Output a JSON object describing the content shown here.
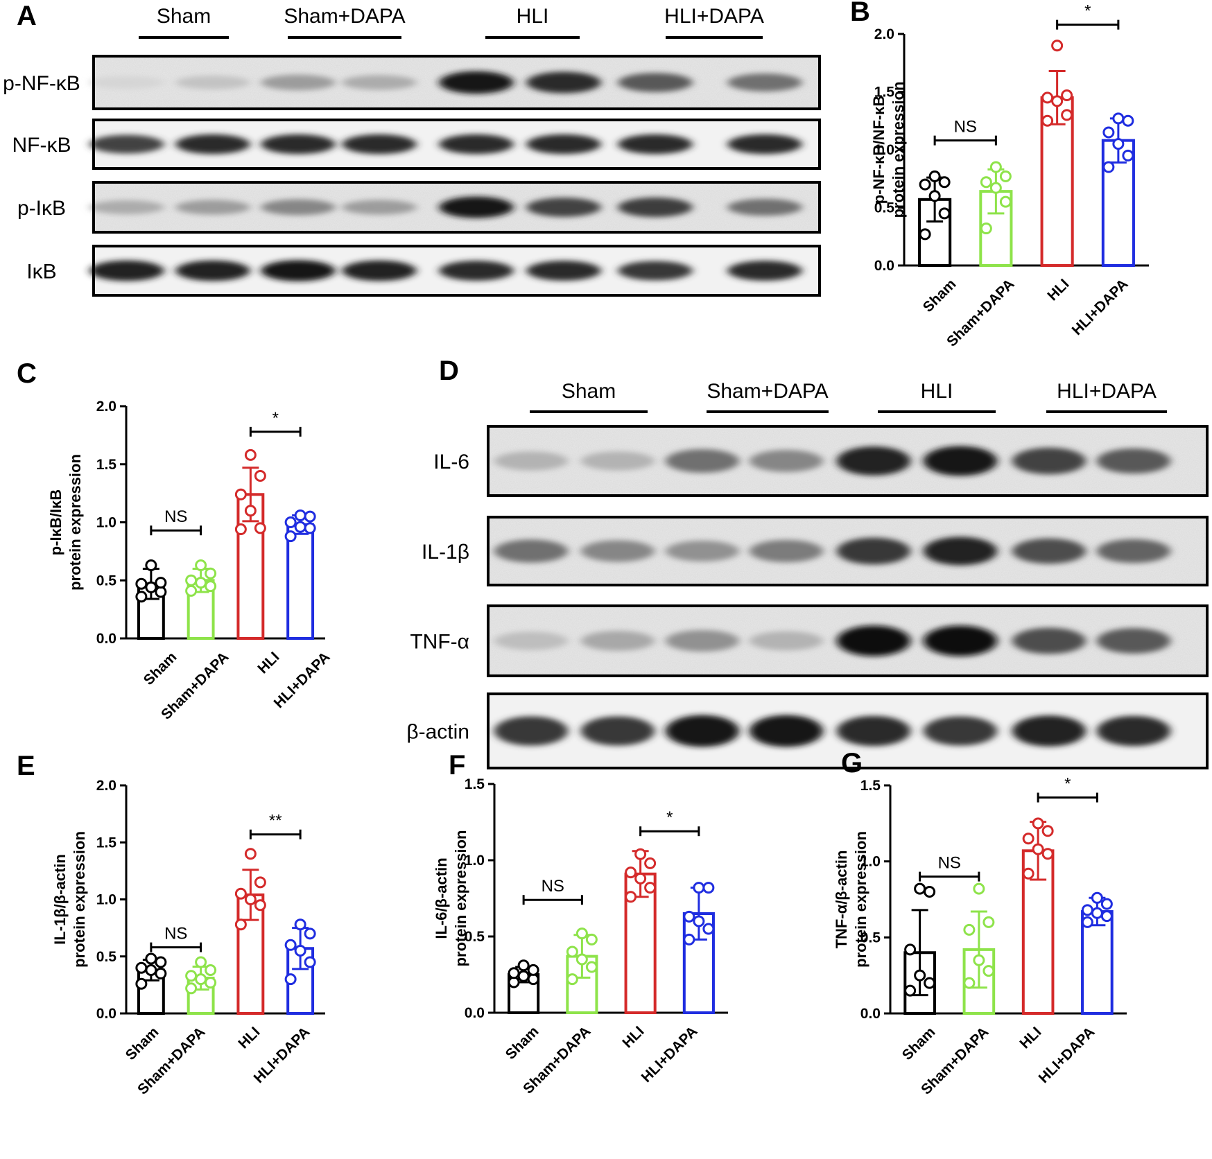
{
  "colors": {
    "sham": "#000000",
    "sham_dapa": "#8ee34a",
    "hli": "#d42a2a",
    "hli_dapa": "#1f2de0"
  },
  "blots": [
    {
      "panel": "A",
      "groups": [
        "Sham",
        "Sham+DAPA",
        "HLI",
        "HLI+DAPA"
      ],
      "rows": [
        {
          "label": "p-NF-κB",
          "intensities": [
            0.1,
            0.18,
            0.35,
            0.28,
            0.95,
            0.85,
            0.65,
            0.55
          ],
          "noise": true
        },
        {
          "label": "NF-κB",
          "intensities": [
            0.75,
            0.85,
            0.85,
            0.85,
            0.85,
            0.85,
            0.85,
            0.85
          ],
          "noise": false
        },
        {
          "label": "p-IκB",
          "intensities": [
            0.28,
            0.35,
            0.45,
            0.35,
            0.95,
            0.75,
            0.78,
            0.55
          ],
          "noise": true
        },
        {
          "label": "IκB",
          "intensities": [
            0.9,
            0.9,
            0.95,
            0.9,
            0.85,
            0.85,
            0.8,
            0.85
          ],
          "noise": false
        }
      ]
    },
    {
      "panel": "D",
      "groups": [
        "Sham",
        "Sham+DAPA",
        "HLI",
        "HLI+DAPA"
      ],
      "rows": [
        {
          "label": "IL-6",
          "intensities": [
            0.25,
            0.25,
            0.55,
            0.45,
            0.9,
            0.95,
            0.75,
            0.65
          ],
          "noise": true
        },
        {
          "label": "IL-1β",
          "intensities": [
            0.55,
            0.45,
            0.4,
            0.5,
            0.8,
            0.9,
            0.7,
            0.6
          ],
          "noise": true
        },
        {
          "label": "TNF-α",
          "intensities": [
            0.2,
            0.3,
            0.4,
            0.25,
            0.98,
            0.98,
            0.7,
            0.65
          ],
          "noise": true
        },
        {
          "label": "β-actin",
          "intensities": [
            0.8,
            0.8,
            0.95,
            0.95,
            0.85,
            0.8,
            0.9,
            0.85
          ],
          "noise": false
        }
      ]
    }
  ],
  "chart_data": [
    {
      "panel": "B",
      "type": "bar",
      "categories": [
        "Sham",
        "Sham+DAPA",
        "HLI",
        "HLI+DAPA"
      ],
      "ylabel": [
        "p-NF-κB/NF-κB",
        "protein expression"
      ],
      "ylim": [
        0,
        2.0
      ],
      "yticks": [
        "0.0",
        "0.5",
        "1.0",
        "1.5",
        "2.0"
      ],
      "values": [
        0.57,
        0.64,
        1.45,
        1.08
      ],
      "sd": [
        0.19,
        0.19,
        0.23,
        0.19
      ],
      "points": [
        [
          0.27,
          0.45,
          0.6,
          0.7,
          0.72,
          0.77
        ],
        [
          0.32,
          0.55,
          0.67,
          0.72,
          0.77,
          0.85
        ],
        [
          1.25,
          1.3,
          1.42,
          1.45,
          1.47,
          1.9
        ],
        [
          0.85,
          0.95,
          1.05,
          1.15,
          1.25,
          1.27
        ]
      ],
      "comparisons": [
        {
          "from": 0,
          "to": 1,
          "y": 1.08,
          "label": "NS"
        },
        {
          "from": 2,
          "to": 3,
          "y": 2.08,
          "label": "*"
        }
      ]
    },
    {
      "panel": "C",
      "type": "bar",
      "categories": [
        "Sham",
        "Sham+DAPA",
        "HLI",
        "HLI+DAPA"
      ],
      "ylabel": [
        "p-IκB/IκB",
        "protein expression"
      ],
      "ylim": [
        0,
        2.0
      ],
      "yticks": [
        "0.0",
        "0.5",
        "1.0",
        "1.5",
        "2.0"
      ],
      "values": [
        0.47,
        0.5,
        1.24,
        0.98
      ],
      "sd": [
        0.13,
        0.1,
        0.23,
        0.08
      ],
      "points": [
        [
          0.36,
          0.4,
          0.44,
          0.47,
          0.48,
          0.63
        ],
        [
          0.41,
          0.45,
          0.48,
          0.5,
          0.56,
          0.63
        ],
        [
          0.94,
          0.95,
          1.1,
          1.24,
          1.4,
          1.58
        ],
        [
          0.88,
          0.95,
          0.96,
          1.0,
          1.05,
          1.06
        ]
      ],
      "comparisons": [
        {
          "from": 0,
          "to": 1,
          "y": 0.93,
          "label": "NS"
        },
        {
          "from": 2,
          "to": 3,
          "y": 1.78,
          "label": "*"
        }
      ]
    },
    {
      "panel": "E",
      "type": "bar",
      "categories": [
        "Sham",
        "Sham+DAPA",
        "HLI",
        "HLI+DAPA"
      ],
      "ylabel": [
        "IL-1β/β-actin",
        "protein expression"
      ],
      "ylim": [
        0,
        2.0
      ],
      "yticks": [
        "0.0",
        "0.5",
        "1.0",
        "1.5",
        "2.0"
      ],
      "values": [
        0.38,
        0.31,
        1.04,
        0.57
      ],
      "sd": [
        0.09,
        0.1,
        0.22,
        0.18
      ],
      "points": [
        [
          0.26,
          0.35,
          0.38,
          0.4,
          0.45,
          0.48
        ],
        [
          0.22,
          0.27,
          0.3,
          0.33,
          0.38,
          0.45
        ],
        [
          0.78,
          0.95,
          1.0,
          1.05,
          1.15,
          1.4
        ],
        [
          0.3,
          0.45,
          0.55,
          0.6,
          0.7,
          0.78
        ]
      ],
      "comparisons": [
        {
          "from": 0,
          "to": 1,
          "y": 0.58,
          "label": "NS"
        },
        {
          "from": 2,
          "to": 3,
          "y": 1.57,
          "label": "**"
        }
      ]
    },
    {
      "panel": "F",
      "type": "bar",
      "categories": [
        "Sham",
        "Sham+DAPA",
        "HLI",
        "HLI+DAPA"
      ],
      "ylabel": [
        "IL-6/β-actin",
        "protein expression"
      ],
      "ylim": [
        0,
        1.5
      ],
      "yticks": [
        "0.0",
        "0.5",
        "1.0",
        "1.5"
      ],
      "values": [
        0.25,
        0.37,
        0.91,
        0.65
      ],
      "sd": [
        0.05,
        0.14,
        0.15,
        0.17
      ],
      "points": [
        [
          0.2,
          0.22,
          0.24,
          0.26,
          0.28,
          0.31
        ],
        [
          0.22,
          0.3,
          0.35,
          0.4,
          0.48,
          0.52
        ],
        [
          0.76,
          0.82,
          0.88,
          0.92,
          0.98,
          1.04
        ],
        [
          0.48,
          0.55,
          0.6,
          0.63,
          0.82,
          0.82
        ]
      ],
      "comparisons": [
        {
          "from": 0,
          "to": 1,
          "y": 0.74,
          "label": "NS"
        },
        {
          "from": 2,
          "to": 3,
          "y": 1.19,
          "label": "*"
        }
      ]
    },
    {
      "panel": "G",
      "type": "bar",
      "categories": [
        "Sham",
        "Sham+DAPA",
        "HLI",
        "HLI+DAPA"
      ],
      "ylabel": [
        "TNF-α/β-actin",
        "protein expression"
      ],
      "ylim": [
        0,
        1.5
      ],
      "yticks": [
        "0.0",
        "0.5",
        "1.0",
        "1.5"
      ],
      "values": [
        0.4,
        0.42,
        1.07,
        0.67
      ],
      "sd": [
        0.28,
        0.25,
        0.19,
        0.09
      ],
      "points": [
        [
          0.15,
          0.2,
          0.25,
          0.42,
          0.8,
          0.82
        ],
        [
          0.2,
          0.28,
          0.35,
          0.55,
          0.6,
          0.82
        ],
        [
          0.92,
          1.05,
          1.08,
          1.15,
          1.2,
          1.25
        ],
        [
          0.6,
          0.64,
          0.66,
          0.68,
          0.72,
          0.76
        ]
      ],
      "comparisons": [
        {
          "from": 0,
          "to": 1,
          "y": 0.9,
          "label": "NS"
        },
        {
          "from": 2,
          "to": 3,
          "y": 1.42,
          "label": "*"
        }
      ]
    }
  ]
}
